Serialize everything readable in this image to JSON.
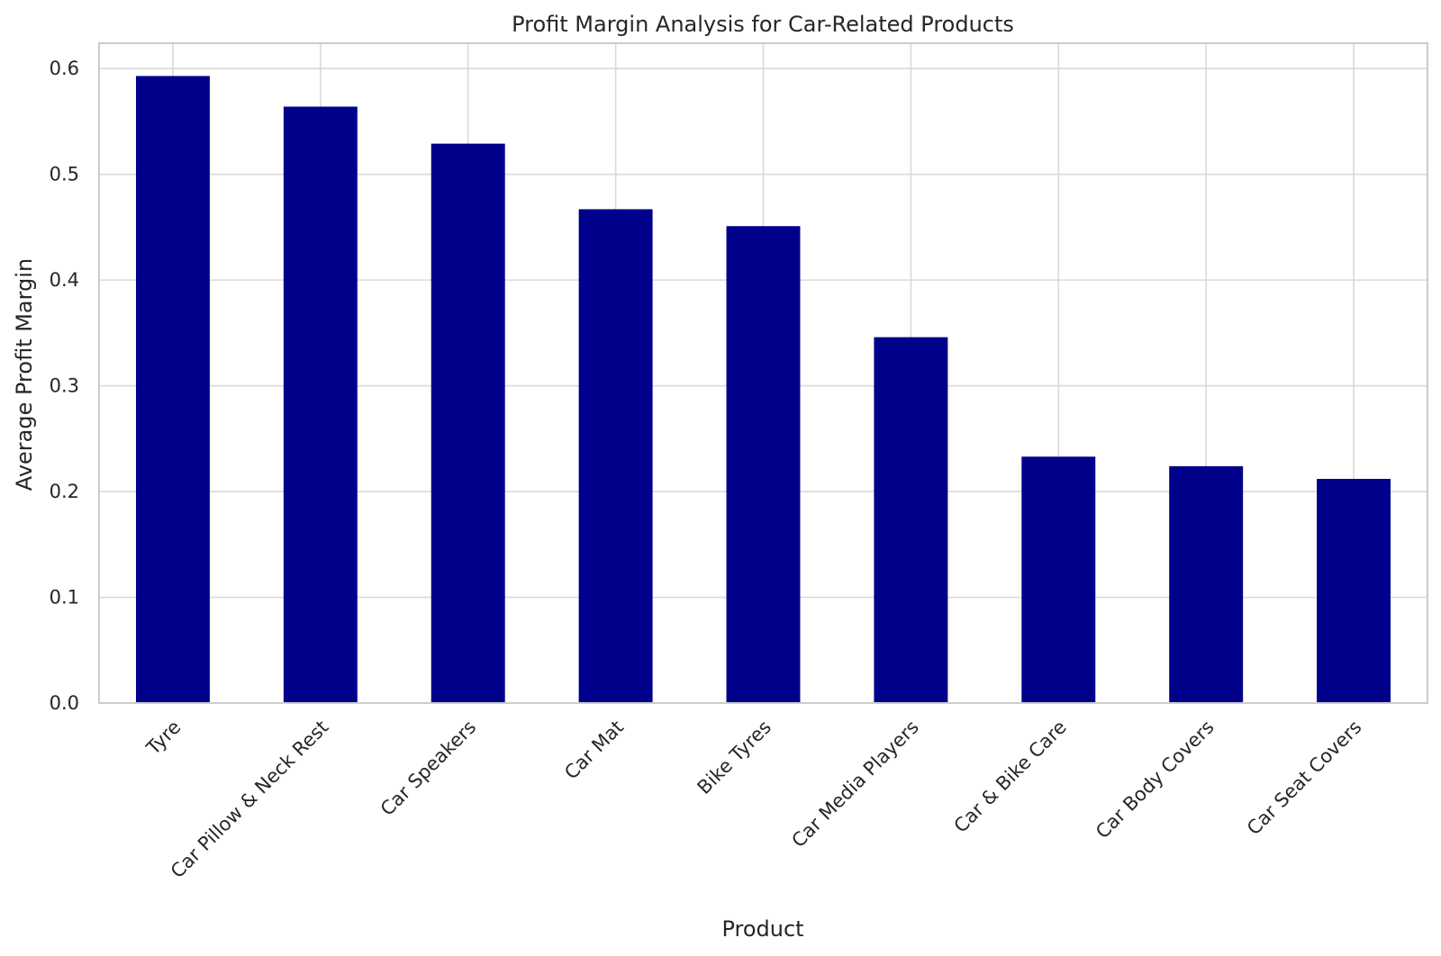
{
  "chart_data": {
    "type": "bar",
    "title": "Profit Margin Analysis for Car-Related Products",
    "xlabel": "Product",
    "ylabel": "Average Profit Margin",
    "categories": [
      "Tyre",
      "Car Pillow & Neck Rest",
      "Car Speakers",
      "Car Mat",
      "Bike Tyres",
      "Car Media Players",
      "Car & Bike Care",
      "Car Body Covers",
      "Car Seat Covers"
    ],
    "values": [
      0.593,
      0.564,
      0.529,
      0.467,
      0.451,
      0.346,
      0.233,
      0.224,
      0.212
    ],
    "ylim": [
      0,
      0.624
    ],
    "yticks": [
      0.0,
      0.1,
      0.2,
      0.3,
      0.4,
      0.5,
      0.6
    ],
    "ytick_labels": [
      "0.0",
      "0.1",
      "0.2",
      "0.3",
      "0.4",
      "0.5",
      "0.6"
    ],
    "bar_color": "#00008b",
    "grid": true,
    "legend": "none"
  }
}
